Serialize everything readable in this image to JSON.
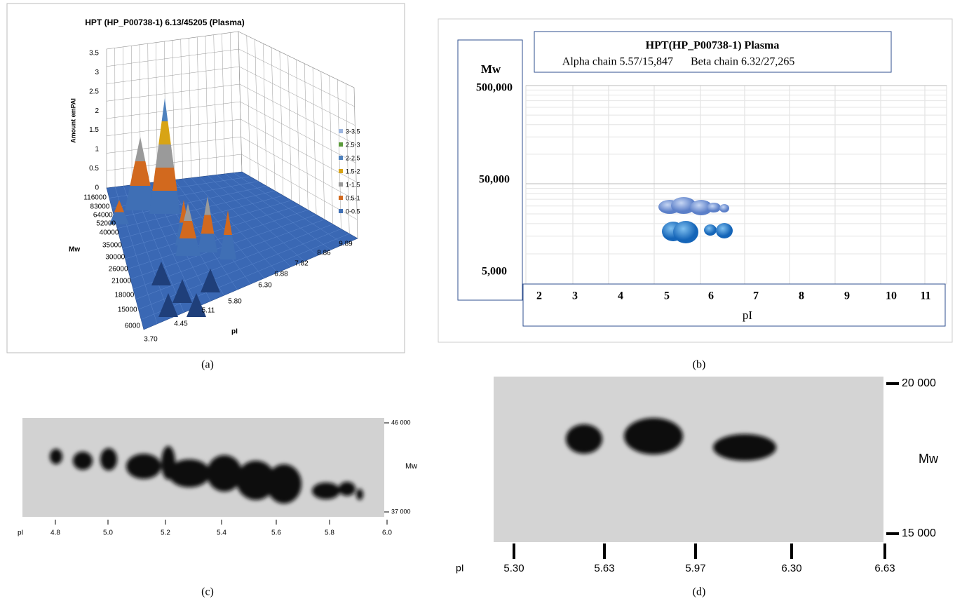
{
  "panel_a": {
    "label": "(a)",
    "title": "HPT (HP_P00738-1) 6.13/45205 (Plasma)",
    "z_axis_label": "Amount emPAI",
    "z_ticks": [
      "3.5",
      "3",
      "2.5",
      "2",
      "1.5",
      "1",
      "0.5",
      "0"
    ],
    "mw_label": "Mw",
    "mw_ticks": [
      "116000",
      "83000",
      "64000",
      "52000",
      "40000",
      "35000",
      "30000",
      "26000",
      "21000",
      "18000",
      "15000",
      "6000"
    ],
    "pi_label": "pI",
    "pi_ticks": [
      "3.70",
      "4.45",
      "5.11",
      "5.80",
      "6.30",
      "6.88",
      "7.82",
      "8.86",
      "9.89"
    ],
    "legend": [
      {
        "name": "3-3.5",
        "color": "#9db6e0"
      },
      {
        "name": "2.5-3",
        "color": "#5a9a3a"
      },
      {
        "name": "2-2.5",
        "color": "#4e81bd"
      },
      {
        "name": "1.5-2",
        "color": "#d8a415"
      },
      {
        "name": "1-1.5",
        "color": "#9a9a9a"
      },
      {
        "name": "0.5-1",
        "color": "#d2691e"
      },
      {
        "name": "0-0.5",
        "color": "#3f6fb5"
      }
    ]
  },
  "panel_b": {
    "label": "(b)",
    "title": "HPT(HP_P00738-1) Plasma",
    "alpha": "Alpha chain 5.57/15,847",
    "beta": "Beta chain 6.32/27,265",
    "y_label": "Mw",
    "y_ticks": [
      "500,000",
      "50,000",
      "5,000"
    ],
    "x_ticks": [
      "2",
      "3",
      "4",
      "5",
      "6",
      "7",
      "8",
      "9",
      "10",
      "11"
    ],
    "x_label": "pI"
  },
  "panel_c": {
    "label": "(c)",
    "mw_label": "Mw",
    "mw_ticks": [
      "46 000",
      "37 000"
    ],
    "pi_label": "pI",
    "pi_ticks": [
      "4.8",
      "5.0",
      "5.2",
      "5.4",
      "5.6",
      "5.8",
      "6.0"
    ]
  },
  "panel_d": {
    "label": "(d)",
    "mw_label": "Mw",
    "mw_ticks": [
      "20 000",
      "15 000"
    ],
    "pi_label": "pI",
    "pi_ticks": [
      "5.30",
      "5.63",
      "5.97",
      "6.30",
      "6.63"
    ]
  }
}
